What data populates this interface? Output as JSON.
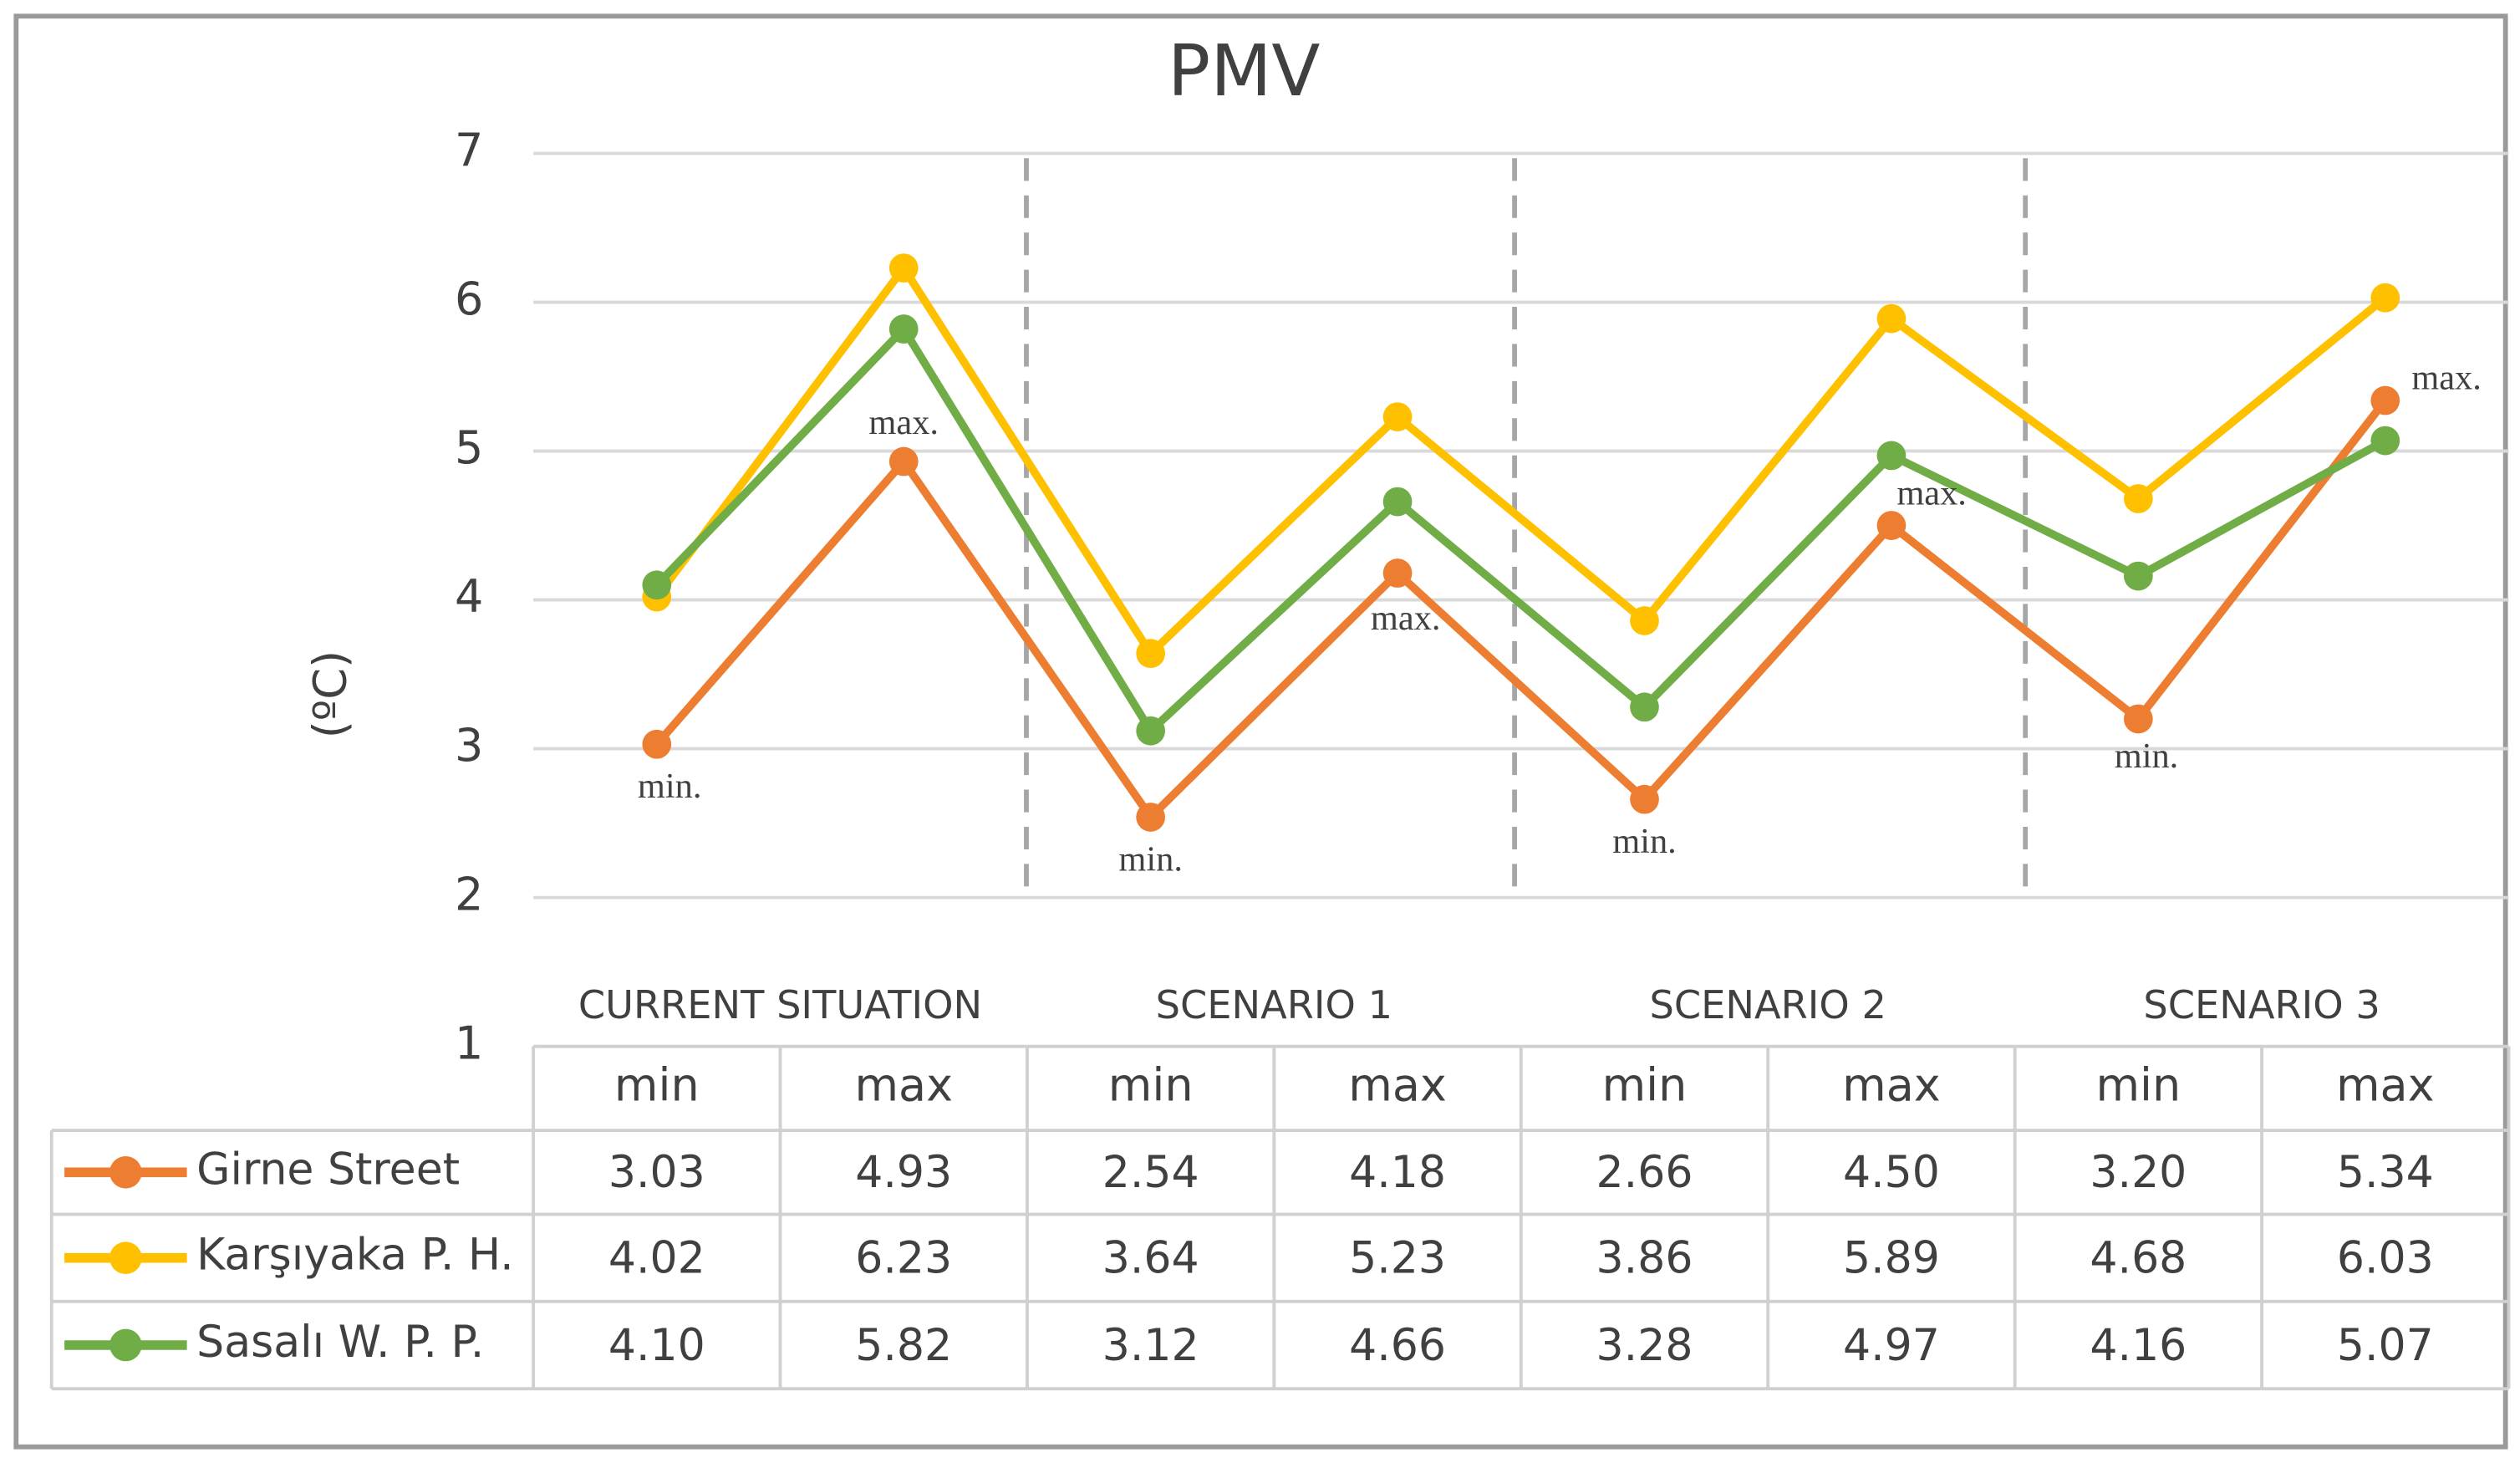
{
  "chart_data": {
    "type": "line",
    "title": "PMV",
    "y_label": "(ºC)",
    "groups": [
      "CURRENT SITUATION",
      "SCENARIO 1",
      "SCENARIO 2",
      "SCENARIO 3"
    ],
    "categories": [
      "min",
      "max",
      "min",
      "max",
      "min",
      "max",
      "min",
      "max"
    ],
    "ylim": [
      1,
      7
    ],
    "yticks": [
      1,
      2,
      3,
      4,
      5,
      6,
      7
    ],
    "grid": true,
    "annotations": [
      "min.",
      "max.",
      "min.",
      "max.",
      "min.",
      "max.",
      "min.",
      "max."
    ],
    "series": [
      {
        "name": "Girne Street",
        "color": "#ed7d31",
        "values": [
          3.03,
          4.93,
          2.54,
          4.18,
          2.66,
          4.5,
          3.2,
          5.34
        ],
        "value_labels": [
          "3.03",
          "4.93",
          "2.54",
          "4.18",
          "2.66",
          "4.50",
          "3.20",
          "5.34"
        ]
      },
      {
        "name": "Karşıyaka P. H.",
        "color": "#ffc000",
        "values": [
          4.02,
          6.23,
          3.64,
          5.23,
          3.86,
          5.89,
          4.68,
          6.03
        ]
      },
      {
        "name": "Sasalı W. P. P.",
        "color": "#70ad47",
        "values": [
          4.1,
          5.82,
          3.12,
          4.66,
          3.28,
          4.97,
          4.16,
          5.07
        ],
        "value_labels": [
          "4.10",
          "5.82",
          "3.12",
          "4.66",
          "3.28",
          "4.97",
          "4.16",
          "5.07"
        ]
      }
    ]
  }
}
